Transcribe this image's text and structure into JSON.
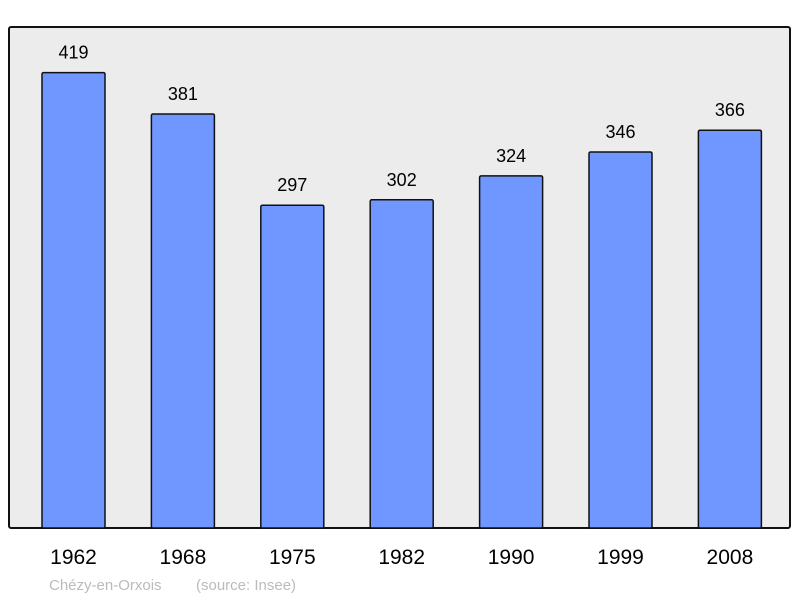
{
  "chart_data": {
    "type": "bar",
    "title": "",
    "xlabel": "",
    "ylabel": "",
    "categories": [
      "1962",
      "1968",
      "1975",
      "1982",
      "1990",
      "1999",
      "2008"
    ],
    "values": [
      419,
      381,
      297,
      302,
      324,
      346,
      366
    ],
    "ylim": [
      0,
      461
    ],
    "grid": false,
    "bar_color": "#7096ff",
    "background_color": "#ececec",
    "data_labels": true
  },
  "footer": {
    "place": "Chézy-en-Orxois",
    "source": "(source: Insee)"
  }
}
